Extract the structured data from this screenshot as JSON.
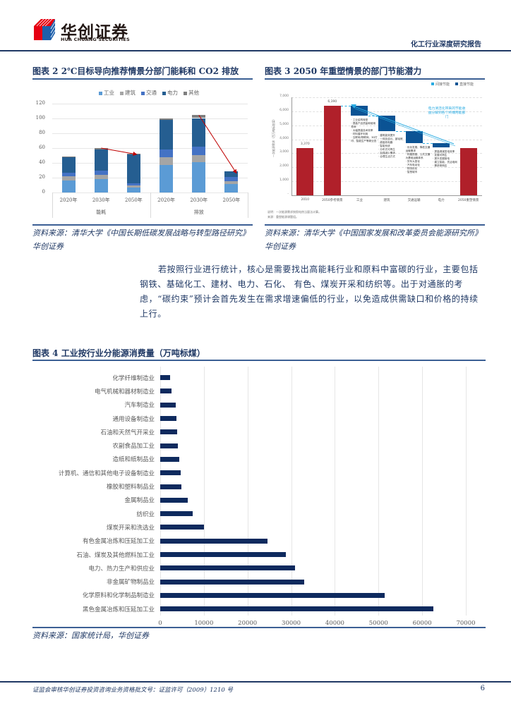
{
  "header": {
    "logo_cn": "华创证券",
    "logo_en": "HUA CHUANG SECURITIES",
    "report_type": "化工行业深度研究报告"
  },
  "figure2": {
    "title": "图表 2   2℃目标导向推荐情景分部门能耗和 CO2 排放",
    "source": "资料来源：清华大学《中国长期低碳发展战略与转型路径研究》华创证券"
  },
  "figure3": {
    "title": "图表 3   2050 年重塑情景的部门节能潜力",
    "source": "资料来源：清华大学《中国国家发展和改革委员会能源研究所》华创证券",
    "note_line1": "说明：一次能源需求按照电热当量法计算。",
    "note_line2": "来源：重塑能源课题组。"
  },
  "paragraph": {
    "text": "若按照行业进行统计，核心是需要找出高能耗行业和原料中富碳的行业，主要包括钢铁、基础化工、建材、电力、石化、 有色、煤炭开采和纺织等。出于对通胀的考虑，“碳约束”预计会首先发生在需求增速偏低的行业，以免造成供需缺口和价格的持续上行。"
  },
  "figure4": {
    "title": "图表 4   工业按行业分能源消费量（万吨标煤）",
    "source": "资料来源：国家统计局，华创证券"
  },
  "footer": {
    "license": "证监会审核华创证券投资咨询业务资格批文号：证监许可（2009）1210 号",
    "page": "6"
  },
  "chart_data": [
    {
      "type": "bar",
      "stacked": true,
      "title": "2℃目标导向推荐情景分部门能耗和 CO2 排放",
      "groups": [
        "能耗",
        "排放"
      ],
      "categories": [
        "2020年",
        "2030年",
        "2050年",
        "2020年",
        "2030年",
        "2050年"
      ],
      "series": [
        {
          "name": "工业",
          "color": "#5b9bd5",
          "values": [
            16,
            18.5,
            6.5,
            37.5,
            41,
            11.5
          ]
        },
        {
          "name": "建筑",
          "color": "#a5a5a5",
          "values": [
            5.5,
            5.5,
            3,
            10,
            9.5,
            3.5
          ]
        },
        {
          "name": "交通",
          "color": "#4472c4",
          "values": [
            5,
            5.5,
            3,
            10.5,
            11,
            6
          ]
        },
        {
          "name": "电力",
          "color": "#255e91",
          "values": [
            21.5,
            28.5,
            39.5,
            40.5,
            39,
            8
          ]
        },
        {
          "name": "其他",
          "color": "#7f7f7f",
          "values": [
            1,
            2,
            0.5,
            1.5,
            4,
            0
          ]
        }
      ],
      "yticks": [
        0,
        20,
        40,
        60,
        80,
        100,
        120
      ],
      "ylim": [
        0,
        120
      ],
      "annotations": [
        "arrow 能耗 2030→2050",
        "arrow 排放 2030→2050"
      ],
      "legend_position": "top"
    },
    {
      "type": "bar",
      "title": "2050 年重塑情景的部门节能潜力",
      "ylabel": "一次能源需求（百万吨标准煤）",
      "legend": [
        {
          "name": "间接节能",
          "color": "#29abe2"
        },
        {
          "name": "直接节能",
          "color": "#0b5394"
        }
      ],
      "categories": [
        "2010",
        "2050参考情景",
        "工业",
        "建筑",
        "交通运输",
        "电力",
        "2050重塑情景"
      ],
      "values": [
        3370,
        6390,
        null,
        null,
        null,
        null,
        3350
      ],
      "waterfall_steps": [
        {
          "category": "工业",
          "from": 6390,
          "to": 5680
        },
        {
          "category": "建筑",
          "from": 5680,
          "to": 4580
        },
        {
          "category": "交通运输",
          "from": 4580,
          "to": 3730
        },
        {
          "category": "电力",
          "from": 3730,
          "to": 3430
        }
      ],
      "yticks": [
        0,
        1000,
        2000,
        3000,
        4000,
        5000,
        6000,
        7000
      ],
      "ylim": [
        0,
        7000
      ],
      "bar_labels": [
        "3,370",
        "6,390"
      ],
      "annotation": "电力清洁化带来的节能收益分解到各个终端用能部门",
      "step_notes": {
        "工业": [
          "工业结构转型",
          "提高产品质量和使用寿命",
          "大幅提高技术效率",
          "材料循环利用",
          "互联网/物联网、3D打印、智能生产等新业态"
        ],
        "建筑": [
          "建筑能效提升",
          "一体化设计、被动房",
          "超高效电器",
          "智能系统",
          "分布式可再生",
          "加强减少需求",
          "合理生活方式"
        ],
        "交通运输": [
          "优化发展、降低交通运输需求",
          "构建铁路、公共交通为基础运输体系",
          "货车大型化",
          "汽车电动化",
          "物流优化",
          "智慧城市"
        ],
        "电力": [
          "提高燃煤发电效率",
          "发展可再生",
          "提升发展核电",
          "建立智能、灵活电网",
          "需求侧响应"
        ]
      }
    },
    {
      "type": "bar",
      "orientation": "horizontal",
      "title": "工业按行业分能源消费量（万吨标煤）",
      "categories": [
        "化学纤维制造业",
        "电气机械和器材制造业",
        "汽车制造业",
        "通用设备制造业",
        "石油和天然气开采业",
        "农副食品加工业",
        "造纸和纸制品业",
        "计算机、通信和其他电子设备制造业",
        "橡胶和塑料制品业",
        "金属制品业",
        "纺织业",
        "煤炭开采和洗选业",
        "有色金属冶炼和压延加工业",
        "石油、煤炭及其他燃料加工业",
        "电力、热力生产和供应业",
        "非金属矿物制品业",
        "化学原料和化学制品制造业",
        "黑色金属冶炼和压延加工业"
      ],
      "values": [
        2300,
        2600,
        3600,
        3700,
        3900,
        4100,
        4300,
        4700,
        4900,
        6300,
        7400,
        10000,
        24600,
        28700,
        30900,
        32900,
        51400,
        62500
      ],
      "xticks": [
        0,
        10000,
        20000,
        30000,
        40000,
        50000,
        60000,
        70000
      ],
      "xlim": [
        0,
        70000
      ],
      "color": "#0e2a5e",
      "grid": true
    }
  ]
}
